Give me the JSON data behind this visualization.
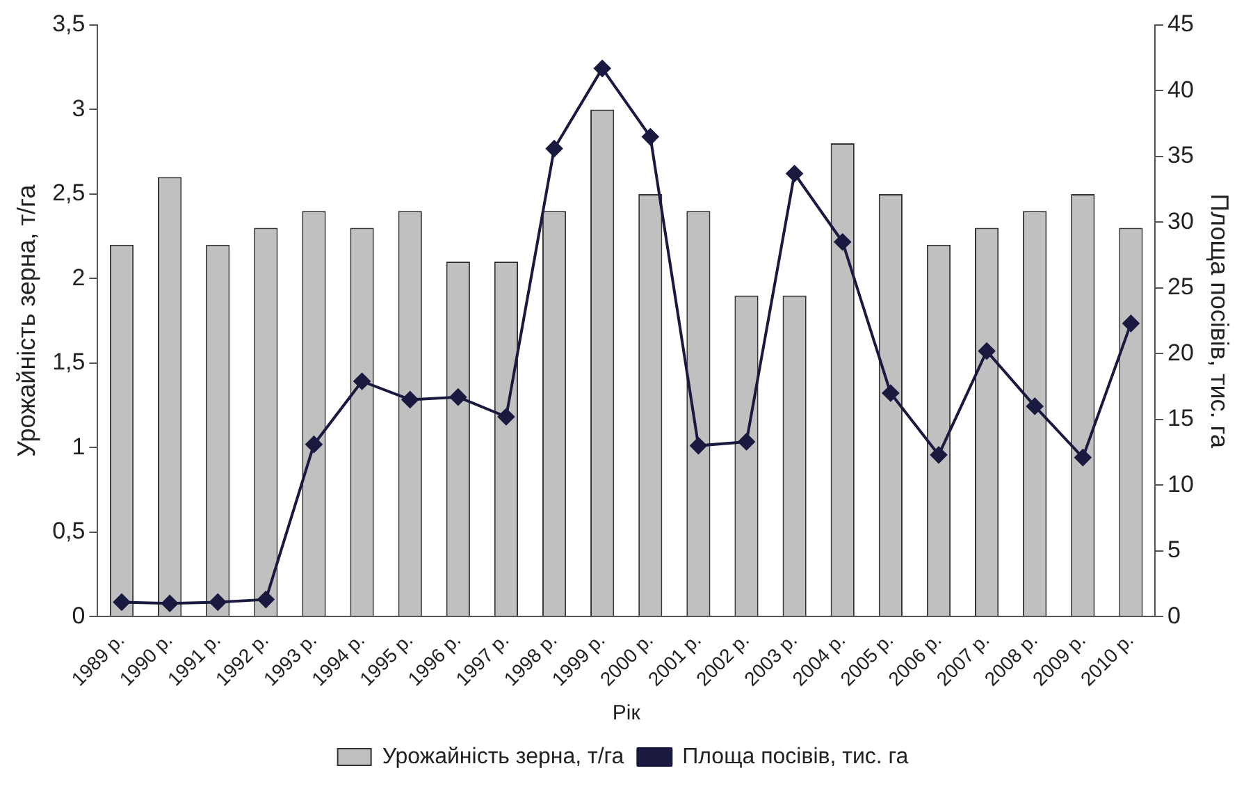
{
  "chart_data": {
    "type": "bar",
    "xlabel": "Рік",
    "ylabel": "Урожайність зерна, т/га",
    "y2label": "Площа посівів, тис. га",
    "categories": [
      "1989 р.",
      "1990 р.",
      "1991 р.",
      "1992 р.",
      "1993 р.",
      "1994 р.",
      "1995 р.",
      "1996 р.",
      "1997 р.",
      "1998 р.",
      "1999 р.",
      "2000 р.",
      "2001 р.",
      "2002 р.",
      "2003 р.",
      "2004 р.",
      "2005 р.",
      "2006 р.",
      "2007 р.",
      "2008 р.",
      "2009 р.",
      "2010 р."
    ],
    "series": [
      {
        "name": "Урожайність зерна, т/га",
        "color": "#c0c0c0",
        "values": [
          2.2,
          2.6,
          2.2,
          2.3,
          2.4,
          2.3,
          2.4,
          2.1,
          2.1,
          2.4,
          3.0,
          2.5,
          2.4,
          1.9,
          1.9,
          2.8,
          2.5,
          2.2,
          2.3,
          2.4,
          2.5,
          2.3
        ]
      },
      {
        "name": "Площа посівів, тис. га",
        "type": "line",
        "axis": "y2",
        "color": "#1a1a40",
        "marker": "diamond",
        "values": [
          1.1,
          1.0,
          1.1,
          1.3,
          13.1,
          17.9,
          16.5,
          16.7,
          15.2,
          35.6,
          41.7,
          36.5,
          13.0,
          13.3,
          33.7,
          28.5,
          17.0,
          12.3,
          20.2,
          16.0,
          12.1,
          22.3
        ]
      }
    ],
    "ylim": [
      0,
      3.5
    ],
    "yticks": [
      0,
      {
        "value": 0.5,
        "label": "0,5"
      },
      1,
      {
        "value": 1.5,
        "label": "1,5"
      },
      2,
      {
        "value": 2.5,
        "label": "2,5"
      },
      3,
      {
        "value": 3.5,
        "label": "3,5"
      }
    ],
    "y2lim": [
      0,
      45
    ],
    "y2ticks": [
      0,
      5,
      10,
      15,
      20,
      25,
      30,
      35,
      40,
      45
    ],
    "grid": false,
    "legend": "bottom"
  }
}
